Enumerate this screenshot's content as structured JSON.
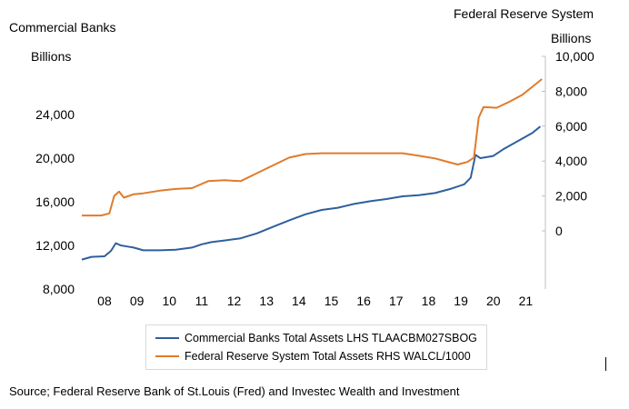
{
  "header": {
    "left_title": "Commercial Banks",
    "right_title": "Federal Reserve System",
    "left_unit": "Billions",
    "right_unit": "Billions"
  },
  "source": "Source; Federal Reserve Bank of St.Louis (Fred) and Investec Wealth and Investment",
  "chart_data": {
    "type": "line",
    "x_tick_labels": [
      "08",
      "09",
      "10",
      "11",
      "12",
      "13",
      "14",
      "15",
      "16",
      "17",
      "18",
      "19",
      "20",
      "21"
    ],
    "x_range": [
      2007.6,
      2021.85
    ],
    "y_left": {
      "label": "Billions",
      "range": [
        8000,
        28000
      ],
      "ticks": [
        8000,
        12000,
        16000,
        20000,
        24000
      ],
      "tick_labels": [
        "8,000",
        "12,000",
        "16,000",
        "20,000",
        "24,000"
      ]
    },
    "y_right": {
      "label": "Billions",
      "range": [
        -2000,
        10000
      ],
      "ticks": [
        0,
        2000,
        4000,
        6000,
        8000,
        10000
      ],
      "tick_labels": [
        "0",
        "2,000",
        "4,000",
        "6,000",
        "8,000",
        "10,000"
      ]
    },
    "grid": false,
    "legend_position": "bottom",
    "series": [
      {
        "name": "Commercial Banks Total Assets LHS TLAACBM027SBOG",
        "axis": "left",
        "color": "#2e5f9e",
        "points": [
          [
            2007.6,
            10700
          ],
          [
            2007.9,
            10950
          ],
          [
            2008.3,
            11000
          ],
          [
            2008.5,
            11500
          ],
          [
            2008.65,
            12200
          ],
          [
            2008.8,
            12000
          ],
          [
            2009.0,
            11900
          ],
          [
            2009.2,
            11800
          ],
          [
            2009.5,
            11550
          ],
          [
            2010.0,
            11550
          ],
          [
            2010.5,
            11600
          ],
          [
            2011.0,
            11800
          ],
          [
            2011.3,
            12100
          ],
          [
            2011.6,
            12300
          ],
          [
            2012.0,
            12450
          ],
          [
            2012.5,
            12650
          ],
          [
            2013.0,
            13100
          ],
          [
            2013.5,
            13700
          ],
          [
            2014.0,
            14300
          ],
          [
            2014.5,
            14850
          ],
          [
            2015.0,
            15250
          ],
          [
            2015.5,
            15450
          ],
          [
            2016.0,
            15800
          ],
          [
            2016.5,
            16050
          ],
          [
            2017.0,
            16250
          ],
          [
            2017.5,
            16500
          ],
          [
            2018.0,
            16600
          ],
          [
            2018.5,
            16800
          ],
          [
            2019.0,
            17200
          ],
          [
            2019.4,
            17600
          ],
          [
            2019.6,
            18200
          ],
          [
            2019.75,
            20300
          ],
          [
            2019.9,
            20000
          ],
          [
            2020.3,
            20200
          ],
          [
            2020.6,
            20800
          ],
          [
            2020.9,
            21300
          ],
          [
            2021.2,
            21800
          ],
          [
            2021.5,
            22300
          ],
          [
            2021.75,
            22900
          ]
        ]
      },
      {
        "name": "Federal Reserve System Total Assets RHS WALCL/1000",
        "axis": "right",
        "color": "#e07b2a",
        "points": [
          [
            2007.6,
            880
          ],
          [
            2008.2,
            880
          ],
          [
            2008.45,
            1000
          ],
          [
            2008.6,
            2000
          ],
          [
            2008.75,
            2250
          ],
          [
            2008.9,
            1900
          ],
          [
            2009.2,
            2100
          ],
          [
            2009.5,
            2150
          ],
          [
            2010.0,
            2300
          ],
          [
            2010.5,
            2400
          ],
          [
            2011.0,
            2450
          ],
          [
            2011.5,
            2850
          ],
          [
            2012.0,
            2900
          ],
          [
            2012.5,
            2850
          ],
          [
            2013.0,
            3300
          ],
          [
            2013.5,
            3750
          ],
          [
            2014.0,
            4200
          ],
          [
            2014.5,
            4400
          ],
          [
            2015.0,
            4450
          ],
          [
            2016.0,
            4450
          ],
          [
            2017.0,
            4450
          ],
          [
            2017.5,
            4450
          ],
          [
            2018.0,
            4300
          ],
          [
            2018.5,
            4150
          ],
          [
            2019.0,
            3900
          ],
          [
            2019.2,
            3800
          ],
          [
            2019.5,
            3950
          ],
          [
            2019.7,
            4200
          ],
          [
            2019.85,
            6500
          ],
          [
            2020.0,
            7100
          ],
          [
            2020.4,
            7050
          ],
          [
            2020.8,
            7400
          ],
          [
            2021.2,
            7800
          ],
          [
            2021.5,
            8250
          ],
          [
            2021.8,
            8700
          ]
        ]
      }
    ]
  }
}
